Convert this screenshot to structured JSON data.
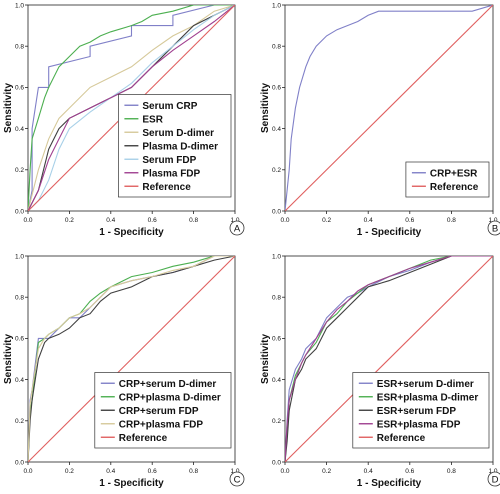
{
  "chart_data": [
    {
      "panel_letter": "A",
      "type": "line",
      "xlabel": "1 - Specificity",
      "ylabel": "Sensitivity",
      "xlim": [
        0,
        1
      ],
      "ylim": [
        0,
        1
      ],
      "xticks": [
        "0.0",
        "0.2",
        "0.4",
        "0.6",
        "0.8",
        "1.0"
      ],
      "yticks": [
        "0.0",
        "0.2",
        "0.4",
        "0.6",
        "0.8",
        "1.0"
      ],
      "grid": false,
      "legend_position": "bottom-right",
      "series": [
        {
          "name": "Serum CRP",
          "color": "#8080c8",
          "x": [
            0,
            0.02,
            0.02,
            0.05,
            0.05,
            0.1,
            0.1,
            0.3,
            0.3,
            0.5,
            0.5,
            0.7,
            0.7,
            0.9,
            1.0
          ],
          "y": [
            0,
            0.1,
            0.4,
            0.6,
            0.6,
            0.6,
            0.7,
            0.75,
            0.8,
            0.85,
            0.9,
            0.9,
            0.95,
            1.0,
            1.0
          ]
        },
        {
          "name": "ESR",
          "color": "#4caf50",
          "x": [
            0,
            0.01,
            0.02,
            0.05,
            0.08,
            0.1,
            0.15,
            0.2,
            0.25,
            0.3,
            0.35,
            0.4,
            0.5,
            0.55,
            0.6,
            0.7,
            0.8,
            0.9,
            1.0
          ],
          "y": [
            0,
            0.2,
            0.35,
            0.45,
            0.55,
            0.6,
            0.7,
            0.75,
            0.8,
            0.82,
            0.85,
            0.87,
            0.9,
            0.92,
            0.95,
            0.97,
            1.0,
            1.0,
            1.0
          ]
        },
        {
          "name": "Serum D-dimer",
          "color": "#d6c99a",
          "x": [
            0,
            0.05,
            0.1,
            0.15,
            0.2,
            0.3,
            0.4,
            0.5,
            0.6,
            0.7,
            0.8,
            0.9,
            1.0
          ],
          "y": [
            0,
            0.2,
            0.35,
            0.45,
            0.5,
            0.6,
            0.65,
            0.7,
            0.78,
            0.85,
            0.9,
            0.97,
            1.0
          ]
        },
        {
          "name": "Plasma D-dimer",
          "color": "#404040",
          "x": [
            0,
            0.05,
            0.1,
            0.15,
            0.2,
            0.3,
            0.4,
            0.5,
            0.6,
            0.7,
            0.8,
            0.9,
            1.0
          ],
          "y": [
            0,
            0.1,
            0.3,
            0.4,
            0.45,
            0.5,
            0.55,
            0.6,
            0.7,
            0.8,
            0.9,
            0.95,
            1.0
          ]
        },
        {
          "name": "Serum FDP",
          "color": "#a8d0e8",
          "x": [
            0,
            0.05,
            0.1,
            0.15,
            0.2,
            0.3,
            0.4,
            0.5,
            0.6,
            0.7,
            0.8,
            0.9,
            1.0
          ],
          "y": [
            0,
            0.05,
            0.15,
            0.3,
            0.4,
            0.48,
            0.55,
            0.62,
            0.72,
            0.8,
            0.88,
            0.95,
            1.0
          ]
        },
        {
          "name": "Plasma FDP",
          "color": "#a04090",
          "x": [
            0,
            0.05,
            0.1,
            0.15,
            0.2,
            0.3,
            0.4,
            0.5,
            0.6,
            0.7,
            0.8,
            0.9,
            1.0
          ],
          "y": [
            0,
            0.1,
            0.25,
            0.35,
            0.45,
            0.5,
            0.55,
            0.6,
            0.7,
            0.78,
            0.85,
            0.92,
            1.0
          ]
        },
        {
          "name": "Reference",
          "color": "#e06060",
          "x": [
            0,
            1
          ],
          "y": [
            0,
            1
          ]
        }
      ]
    },
    {
      "panel_letter": "B",
      "type": "line",
      "xlabel": "1 - Specificity",
      "ylabel": "Sensitivity",
      "xlim": [
        0,
        1
      ],
      "ylim": [
        0,
        1
      ],
      "xticks": [
        "0.0",
        "0.2",
        "0.4",
        "0.6",
        "0.8",
        "1.0"
      ],
      "yticks": [
        "0.0",
        "0.2",
        "0.4",
        "0.6",
        "0.8",
        "1.0"
      ],
      "grid": false,
      "legend_position": "bottom-right",
      "series": [
        {
          "name": "CRP+ESR",
          "color": "#8080c8",
          "x": [
            0,
            0.01,
            0.02,
            0.03,
            0.05,
            0.07,
            0.1,
            0.12,
            0.15,
            0.2,
            0.25,
            0.3,
            0.35,
            0.4,
            0.45,
            0.5,
            0.6,
            0.7,
            0.8,
            0.9,
            1.0
          ],
          "y": [
            0,
            0.1,
            0.2,
            0.35,
            0.5,
            0.6,
            0.7,
            0.75,
            0.8,
            0.85,
            0.88,
            0.9,
            0.92,
            0.95,
            0.97,
            0.97,
            0.97,
            0.97,
            0.97,
            0.97,
            1.0
          ]
        },
        {
          "name": "Reference",
          "color": "#e06060",
          "x": [
            0,
            1
          ],
          "y": [
            0,
            1
          ]
        }
      ]
    },
    {
      "panel_letter": "C",
      "type": "line",
      "xlabel": "1 - Specificity",
      "ylabel": "Sensitivity",
      "xlim": [
        0,
        1
      ],
      "ylim": [
        0,
        1
      ],
      "xticks": [
        "0.0",
        "0.2",
        "0.4",
        "0.6",
        "0.8",
        "1.0"
      ],
      "yticks": [
        "0.0",
        "0.2",
        "0.4",
        "0.6",
        "0.8",
        "1.0"
      ],
      "grid": false,
      "legend_position": "bottom-right",
      "series": [
        {
          "name": "CRP+serum D-dimer",
          "color": "#8080c8",
          "x": [
            0,
            0.01,
            0.02,
            0.05,
            0.08,
            0.1,
            0.15,
            0.2,
            0.25,
            0.3,
            0.35,
            0.4,
            0.5,
            0.6,
            0.7,
            0.8,
            0.9,
            1.0
          ],
          "y": [
            0,
            0.3,
            0.35,
            0.6,
            0.6,
            0.6,
            0.65,
            0.7,
            0.7,
            0.75,
            0.8,
            0.85,
            0.88,
            0.9,
            0.92,
            0.95,
            1.0,
            1.0
          ]
        },
        {
          "name": "CRP+plasma D-dimer",
          "color": "#4caf50",
          "x": [
            0,
            0.01,
            0.02,
            0.05,
            0.08,
            0.1,
            0.15,
            0.2,
            0.25,
            0.3,
            0.35,
            0.4,
            0.5,
            0.6,
            0.7,
            0.8,
            0.9,
            1.0
          ],
          "y": [
            0,
            0.25,
            0.3,
            0.58,
            0.6,
            0.62,
            0.65,
            0.7,
            0.72,
            0.78,
            0.82,
            0.85,
            0.9,
            0.92,
            0.95,
            0.97,
            1.0,
            1.0
          ]
        },
        {
          "name": "CRP+serum FDP",
          "color": "#404040",
          "x": [
            0,
            0.01,
            0.02,
            0.05,
            0.08,
            0.1,
            0.15,
            0.2,
            0.25,
            0.3,
            0.35,
            0.4,
            0.5,
            0.6,
            0.7,
            0.8,
            0.9,
            1.0
          ],
          "y": [
            0,
            0.2,
            0.3,
            0.5,
            0.58,
            0.6,
            0.62,
            0.65,
            0.7,
            0.72,
            0.78,
            0.82,
            0.85,
            0.9,
            0.92,
            0.95,
            0.98,
            1.0
          ]
        },
        {
          "name": "CRP+plasma FDP",
          "color": "#d6c99a",
          "x": [
            0,
            0.01,
            0.02,
            0.05,
            0.08,
            0.1,
            0.15,
            0.2,
            0.25,
            0.3,
            0.35,
            0.4,
            0.5,
            0.6,
            0.7,
            0.8,
            0.9,
            1.0
          ],
          "y": [
            0,
            0.28,
            0.35,
            0.55,
            0.6,
            0.62,
            0.65,
            0.7,
            0.72,
            0.75,
            0.8,
            0.85,
            0.88,
            0.9,
            0.93,
            0.95,
            1.0,
            1.0
          ]
        },
        {
          "name": "Reference",
          "color": "#e06060",
          "x": [
            0,
            1
          ],
          "y": [
            0,
            1
          ]
        }
      ]
    },
    {
      "panel_letter": "D",
      "type": "line",
      "xlabel": "1 - Specificity",
      "ylabel": "Sensitivity",
      "xlim": [
        0,
        1
      ],
      "ylim": [
        0,
        1
      ],
      "xticks": [
        "0.0",
        "0.2",
        "0.4",
        "0.6",
        "0.8",
        "1.0"
      ],
      "yticks": [
        "0.0",
        "0.2",
        "0.4",
        "0.6",
        "0.8",
        "1.0"
      ],
      "grid": false,
      "legend_position": "bottom-right",
      "series": [
        {
          "name": "ESR+serum D-dimer",
          "color": "#8080c8",
          "x": [
            0,
            0.01,
            0.02,
            0.05,
            0.08,
            0.1,
            0.15,
            0.2,
            0.25,
            0.3,
            0.35,
            0.4,
            0.5,
            0.6,
            0.7,
            0.8,
            0.9,
            1.0
          ],
          "y": [
            0,
            0.2,
            0.35,
            0.45,
            0.5,
            0.55,
            0.6,
            0.7,
            0.75,
            0.8,
            0.82,
            0.85,
            0.9,
            0.93,
            0.97,
            1.0,
            1.0,
            1.0
          ]
        },
        {
          "name": "ESR+plasma D-dimer",
          "color": "#4caf50",
          "x": [
            0,
            0.01,
            0.02,
            0.05,
            0.08,
            0.1,
            0.15,
            0.2,
            0.25,
            0.3,
            0.35,
            0.4,
            0.5,
            0.6,
            0.7,
            0.8,
            0.9,
            1.0
          ],
          "y": [
            0,
            0.15,
            0.3,
            0.42,
            0.48,
            0.52,
            0.58,
            0.68,
            0.72,
            0.78,
            0.82,
            0.86,
            0.9,
            0.94,
            0.98,
            1.0,
            1.0,
            1.0
          ]
        },
        {
          "name": "ESR+serum FDP",
          "color": "#404040",
          "x": [
            0,
            0.01,
            0.02,
            0.05,
            0.08,
            0.1,
            0.15,
            0.2,
            0.25,
            0.3,
            0.35,
            0.4,
            0.5,
            0.6,
            0.7,
            0.8,
            0.9,
            1.0
          ],
          "y": [
            0,
            0.1,
            0.25,
            0.4,
            0.45,
            0.5,
            0.55,
            0.65,
            0.7,
            0.75,
            0.8,
            0.85,
            0.88,
            0.92,
            0.96,
            1.0,
            1.0,
            1.0
          ]
        },
        {
          "name": "ESR+plasma FDP",
          "color": "#a04090",
          "x": [
            0,
            0.01,
            0.02,
            0.05,
            0.08,
            0.1,
            0.15,
            0.2,
            0.25,
            0.3,
            0.35,
            0.4,
            0.5,
            0.6,
            0.7,
            0.8,
            0.9,
            1.0
          ],
          "y": [
            0,
            0.18,
            0.3,
            0.4,
            0.48,
            0.52,
            0.6,
            0.68,
            0.74,
            0.78,
            0.83,
            0.86,
            0.9,
            0.94,
            0.97,
            1.0,
            1.0,
            1.0
          ]
        },
        {
          "name": "Reference",
          "color": "#e06060",
          "x": [
            0,
            1
          ],
          "y": [
            0,
            1
          ]
        }
      ]
    }
  ]
}
